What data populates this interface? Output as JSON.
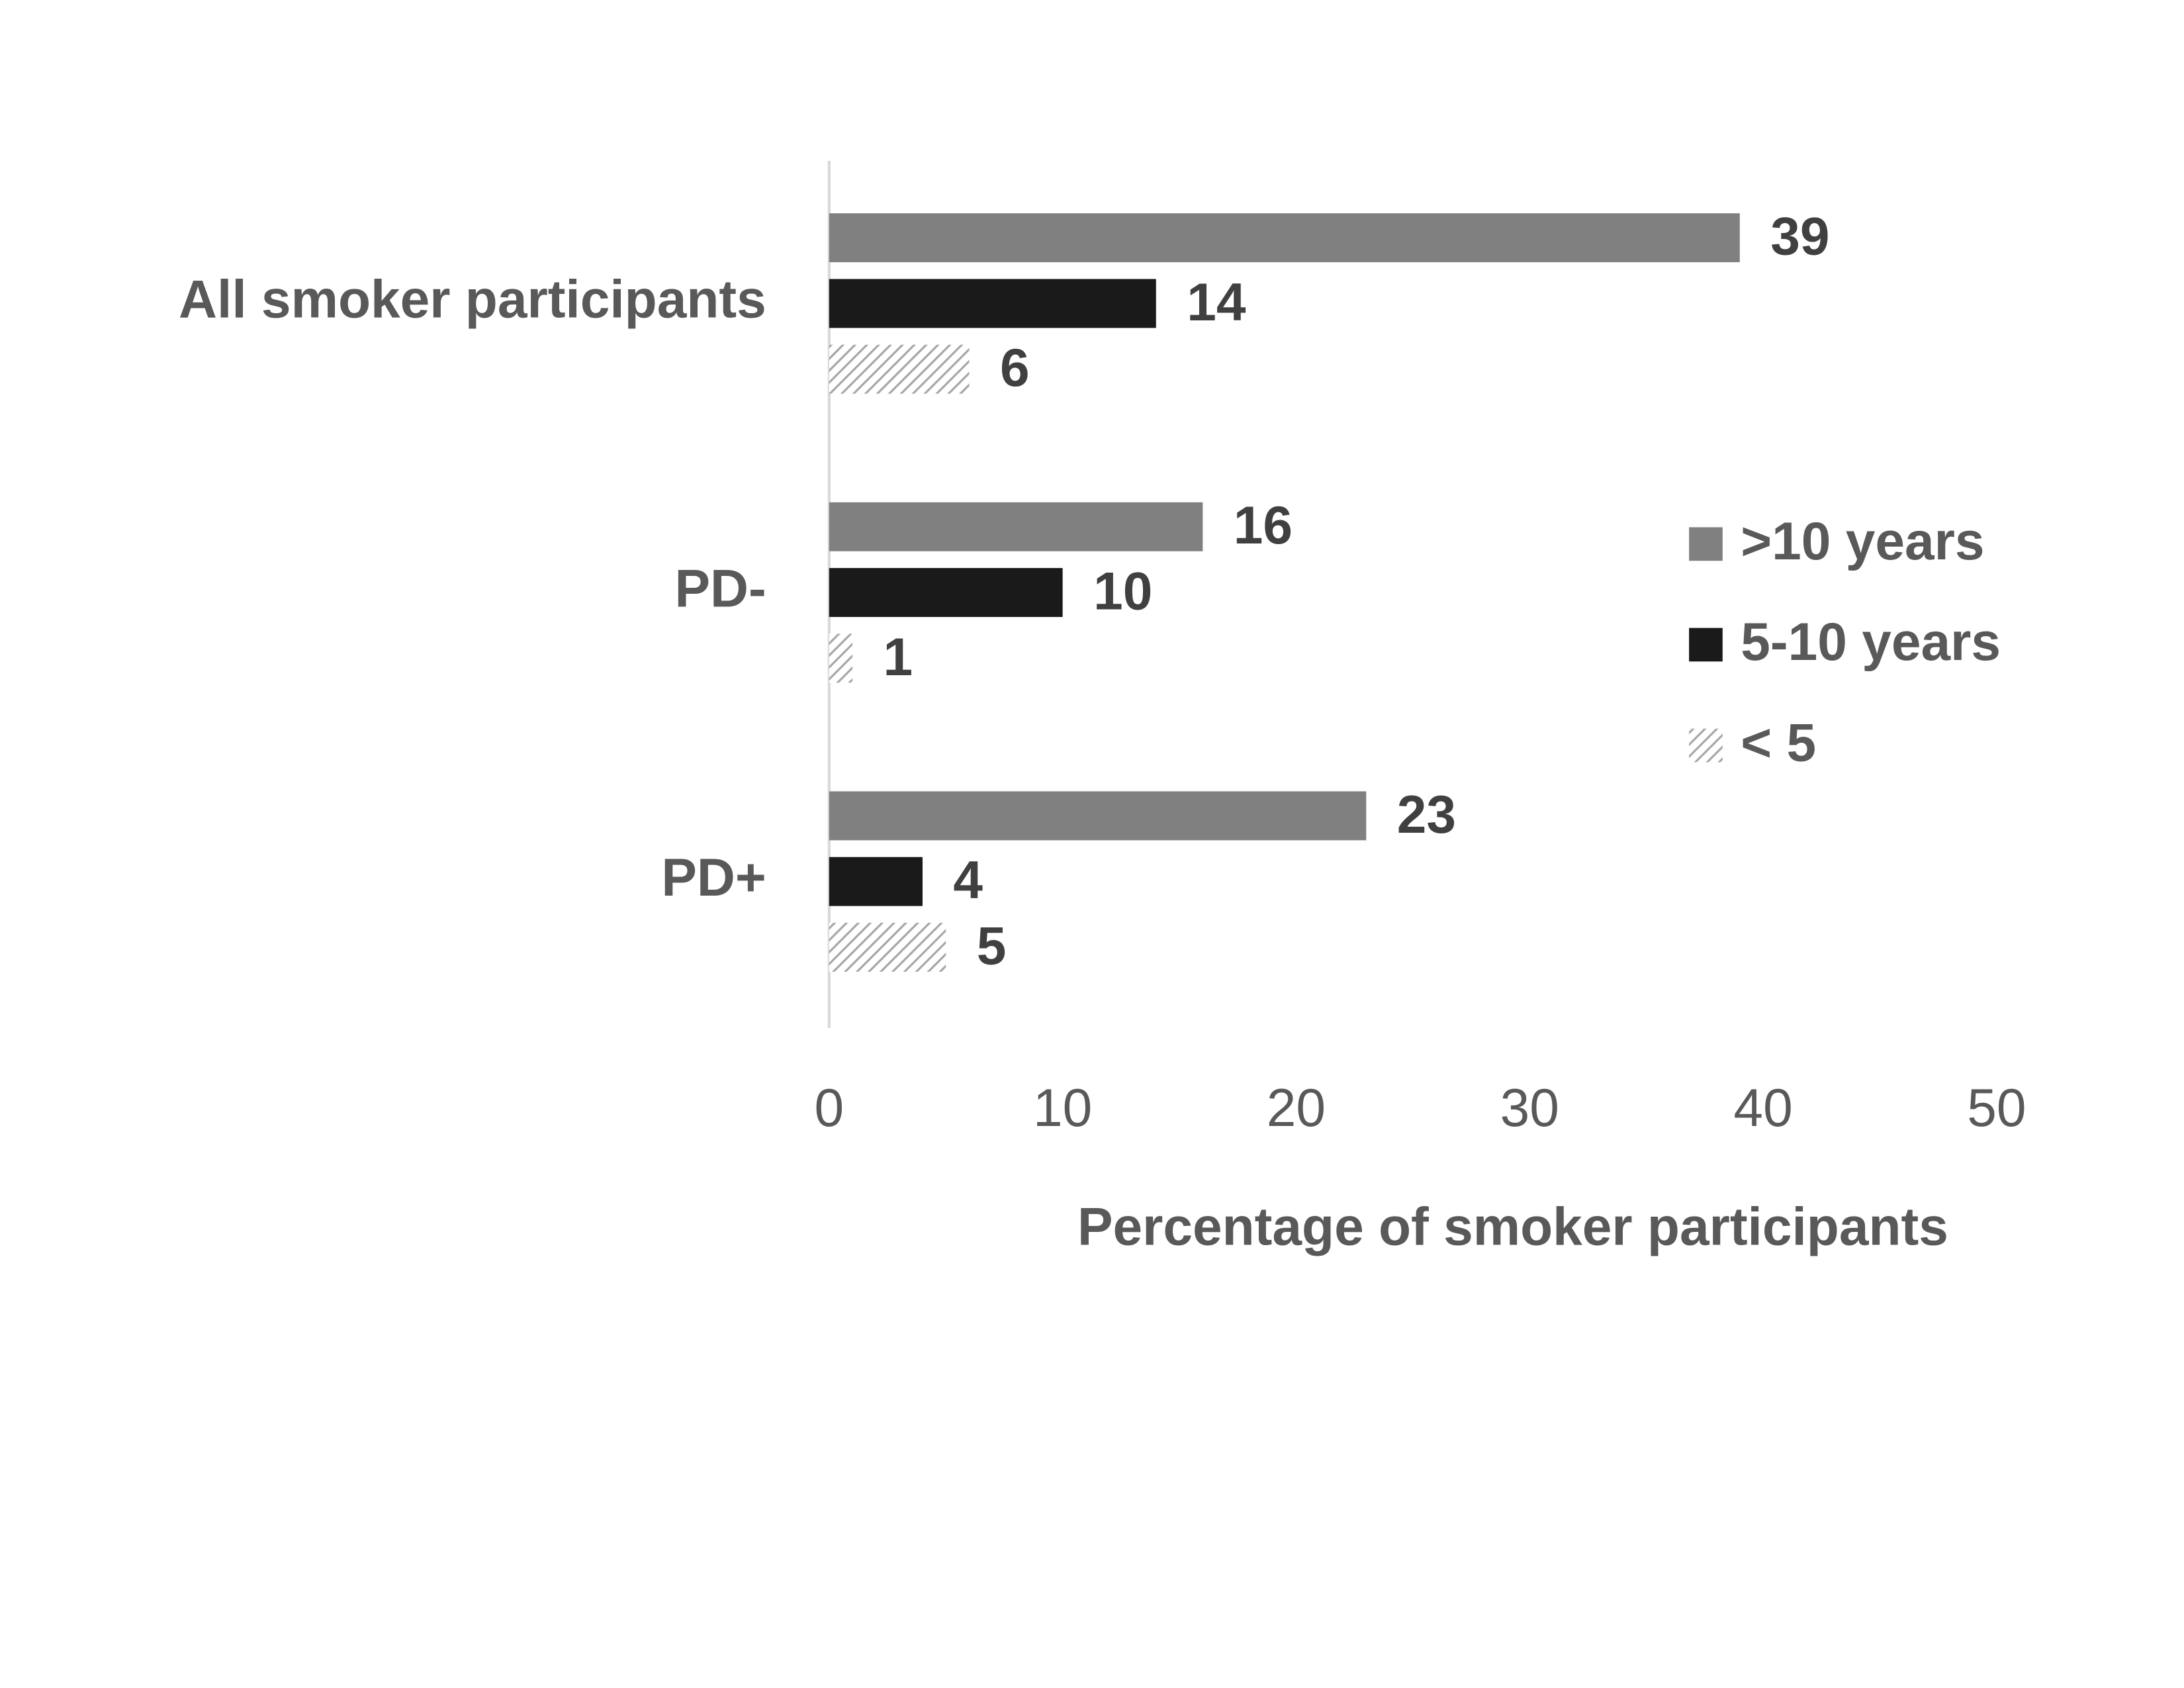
{
  "chart_data": {
    "type": "bar",
    "orientation": "horizontal",
    "x_label": "Percentage of smoker participants",
    "categories": [
      "All smoker participants",
      "PD-",
      "PD+"
    ],
    "series": [
      {
        "name": ">10 years",
        "color": "#808080",
        "values": [
          39,
          16,
          23
        ]
      },
      {
        "name": "5-10 years",
        "color": "#1a1a1a",
        "values": [
          14,
          10,
          4
        ]
      },
      {
        "name": "< 5",
        "color": "#a6a6a6",
        "pattern": "hatch",
        "values": [
          6,
          1,
          5
        ]
      }
    ],
    "xlim": [
      0,
      50
    ],
    "xticks": [
      0,
      10,
      20,
      30,
      40,
      50
    ],
    "legend": "right",
    "data_labels": true
  }
}
